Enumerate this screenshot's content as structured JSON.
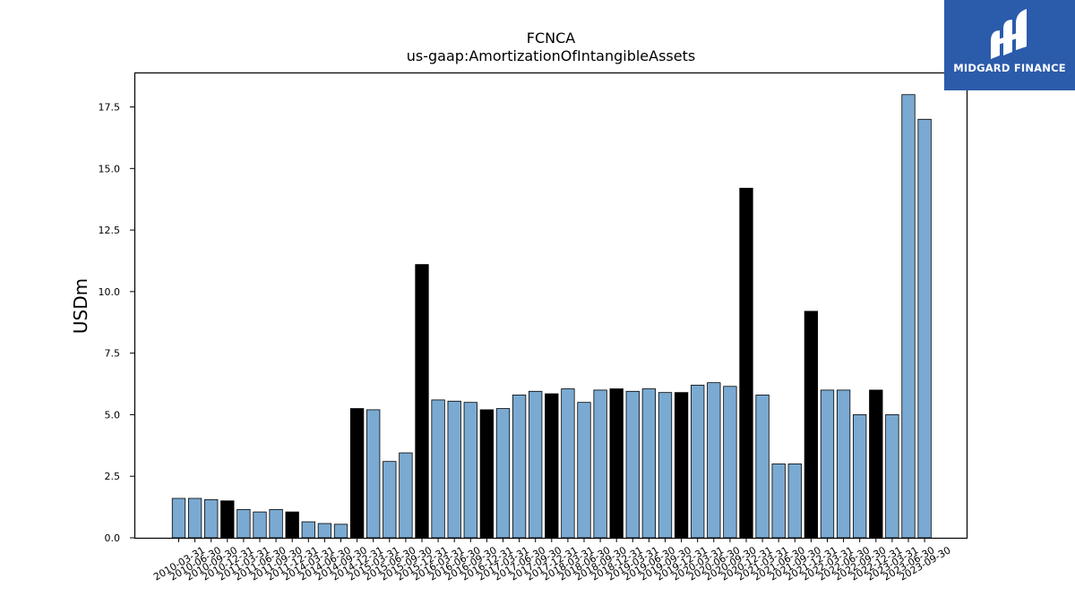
{
  "chart_data": {
    "type": "bar",
    "title": "FCNCA",
    "subtitle": "us-gaap:AmortizationOfIntangibleAssets",
    "ylabel": "USDm",
    "xlabel": "",
    "ylim": [
      0,
      18.9
    ],
    "yticks": [
      "0.0",
      "2.5",
      "5.0",
      "7.5",
      "10.0",
      "12.5",
      "15.0",
      "17.5"
    ],
    "grid": false,
    "colors": {
      "quarter": "#7aaad2",
      "year_end": "#000000",
      "edge": "#000000"
    },
    "categories": [
      "2010-03-31",
      "2010-06-30",
      "2010-09-30",
      "2010-12-31",
      "2011-03-31",
      "2011-06-30",
      "2011-09-30",
      "2011-12-31",
      "2014-03-31",
      "2014-06-30",
      "2014-09-30",
      "2014-12-31",
      "2015-03-31",
      "2015-06-30",
      "2015-09-30",
      "2015-12-31",
      "2016-03-31",
      "2016-06-30",
      "2016-09-30",
      "2016-12-31",
      "2017-03-31",
      "2017-06-30",
      "2017-09-30",
      "2017-12-31",
      "2018-03-31",
      "2018-06-30",
      "2018-09-30",
      "2018-12-31",
      "2019-03-31",
      "2019-06-30",
      "2019-09-30",
      "2019-12-31",
      "2020-03-31",
      "2020-06-30",
      "2020-09-30",
      "2020-12-31",
      "2021-03-31",
      "2021-06-30",
      "2021-09-30",
      "2021-12-31",
      "2022-03-31",
      "2022-06-30",
      "2022-09-30",
      "2022-12-31",
      "2023-03-31",
      "2023-06-30",
      "2023-09-30"
    ],
    "values": [
      1.6,
      1.6,
      1.55,
      1.5,
      1.15,
      1.05,
      1.15,
      1.05,
      0.65,
      0.58,
      0.55,
      5.25,
      5.2,
      3.1,
      3.45,
      11.1,
      5.6,
      5.55,
      5.5,
      5.2,
      5.25,
      5.8,
      5.95,
      5.85,
      6.05,
      5.5,
      6.0,
      6.05,
      5.95,
      6.05,
      5.9,
      5.9,
      6.2,
      6.3,
      6.15,
      14.2,
      5.8,
      3.0,
      3.0,
      9.2,
      6.0,
      6.0,
      5.0,
      6.0,
      5.0,
      18.0,
      17.0
    ],
    "year_end": [
      false,
      false,
      false,
      true,
      false,
      false,
      false,
      true,
      false,
      false,
      false,
      true,
      false,
      false,
      false,
      true,
      false,
      false,
      false,
      true,
      false,
      false,
      false,
      true,
      false,
      false,
      false,
      true,
      false,
      false,
      false,
      true,
      false,
      false,
      false,
      true,
      false,
      false,
      false,
      true,
      false,
      false,
      false,
      true,
      false,
      false,
      false
    ]
  },
  "logo": {
    "text": "MIDGARD FINANCE",
    "icon": "midgard-logo-icon"
  }
}
